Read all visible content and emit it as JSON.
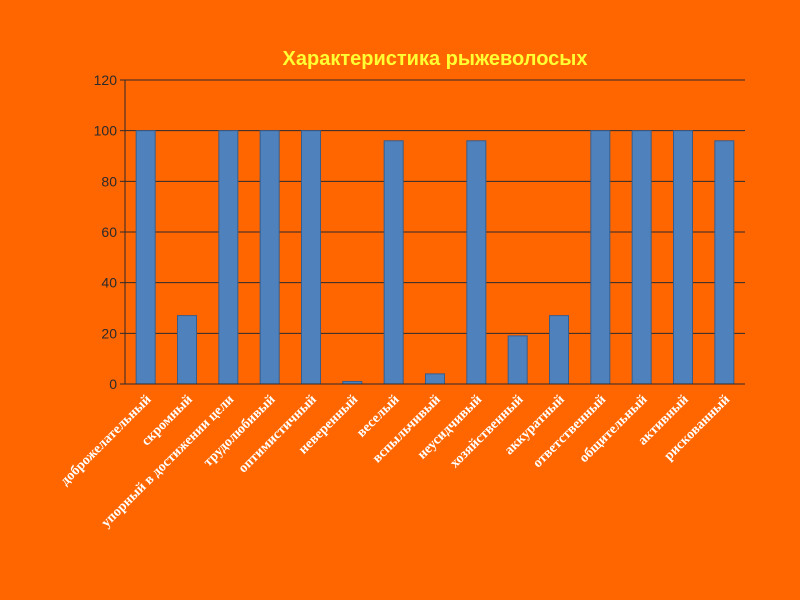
{
  "chart_data": {
    "type": "bar",
    "title": "Характеристика рыжеволосых",
    "categories": [
      "доброжелательный",
      "скромный",
      "упорный в достижении цели",
      "трудолюбивый",
      "оптимистичный",
      "неверенный",
      "веселый",
      "вспыльчивый",
      "неусидчивый",
      "хозяйственный",
      "аккуратный",
      "ответственный",
      "общительный",
      "активный",
      "рискованный"
    ],
    "values": [
      100,
      27,
      100,
      100,
      100,
      1,
      96,
      4,
      96,
      19,
      27,
      100,
      100,
      100,
      96
    ],
    "y_ticks": [
      0,
      20,
      40,
      60,
      80,
      100,
      120
    ],
    "ylim": [
      0,
      120
    ],
    "grid": true,
    "legend": "none"
  },
  "colors": {
    "background": "#ff6600",
    "bar": "#4f81bd",
    "bar_edge": "#385d8a",
    "title": "#ffff33",
    "axis_text": "#2b2b2b",
    "category_text": "#ffffff",
    "grid": "#2b2b2b"
  }
}
